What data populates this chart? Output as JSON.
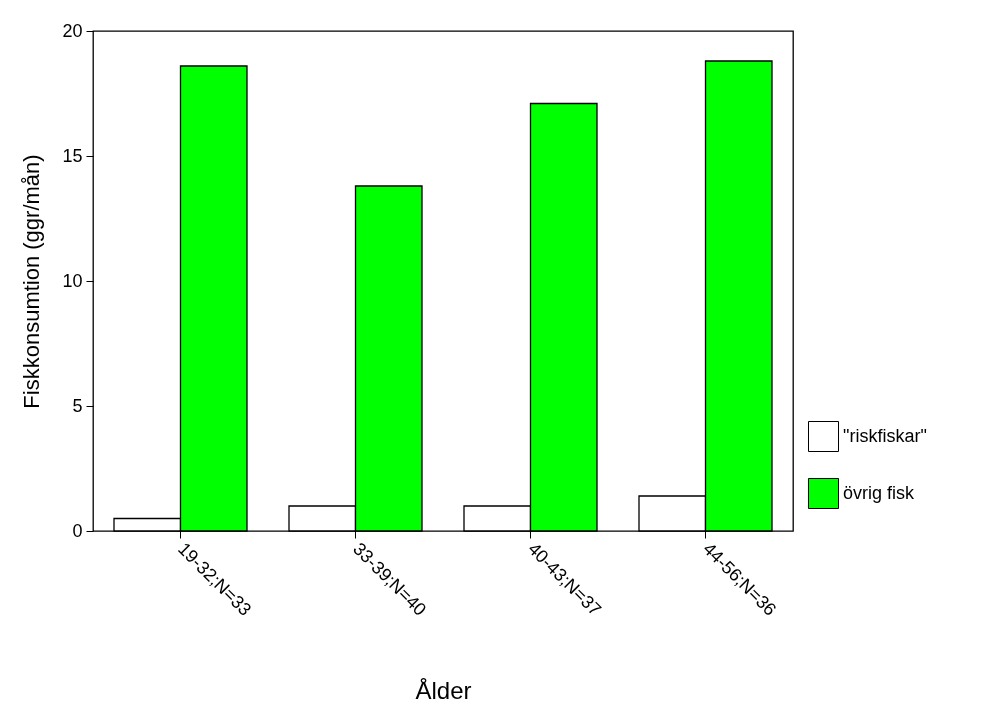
{
  "chart_data": {
    "type": "bar",
    "xlabel": "Ålder",
    "ylabel": "Fiskkonsumtion (ggr/mån)",
    "categories": [
      "19-32;N=33",
      "33-39;N=40",
      "40-43;N=37",
      "44-56;N=36"
    ],
    "series": [
      {
        "name": "\"riskfiskar\"",
        "color": "#ffffff",
        "values": [
          0.5,
          1.0,
          1.0,
          1.4
        ]
      },
      {
        "name": "övrig fisk",
        "color": "#00ff00",
        "values": [
          18.6,
          13.8,
          17.1,
          18.8
        ]
      }
    ],
    "ylim": [
      0,
      20
    ],
    "yticks": [
      0,
      5,
      10,
      15,
      20
    ],
    "grid": false,
    "legend": "right"
  }
}
